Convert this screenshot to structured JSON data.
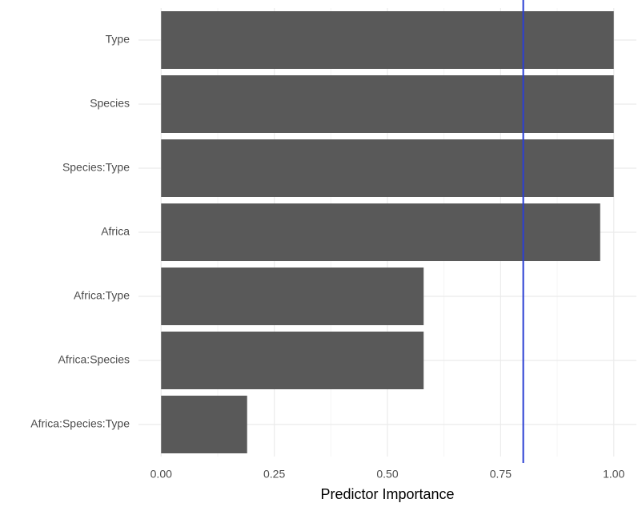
{
  "chart_data": {
    "type": "barh",
    "categories": [
      "Type",
      "Species",
      "Species:Type",
      "Africa",
      "Africa:Type",
      "Africa:Species",
      "Africa:Species:Type"
    ],
    "values": [
      1.0,
      1.0,
      1.0,
      0.97,
      0.58,
      0.58,
      0.19
    ],
    "color": "#595959",
    "x_label": "Predictor Importance",
    "xlim": [
      -0.05,
      1.05
    ],
    "xticks": [
      {
        "value": 0,
        "label": "0.00"
      },
      {
        "value": 0.25,
        "label": "0.25"
      },
      {
        "value": 0.5,
        "label": "0.50"
      },
      {
        "value": 0.75,
        "label": "0.75"
      },
      {
        "value": 1,
        "label": "1.00"
      }
    ],
    "x_minor_ticks": [
      0.125,
      0.375,
      0.625,
      0.875
    ],
    "grid": true,
    "reference_line": {
      "value": 0.8,
      "color": "#2b3fd4"
    }
  }
}
